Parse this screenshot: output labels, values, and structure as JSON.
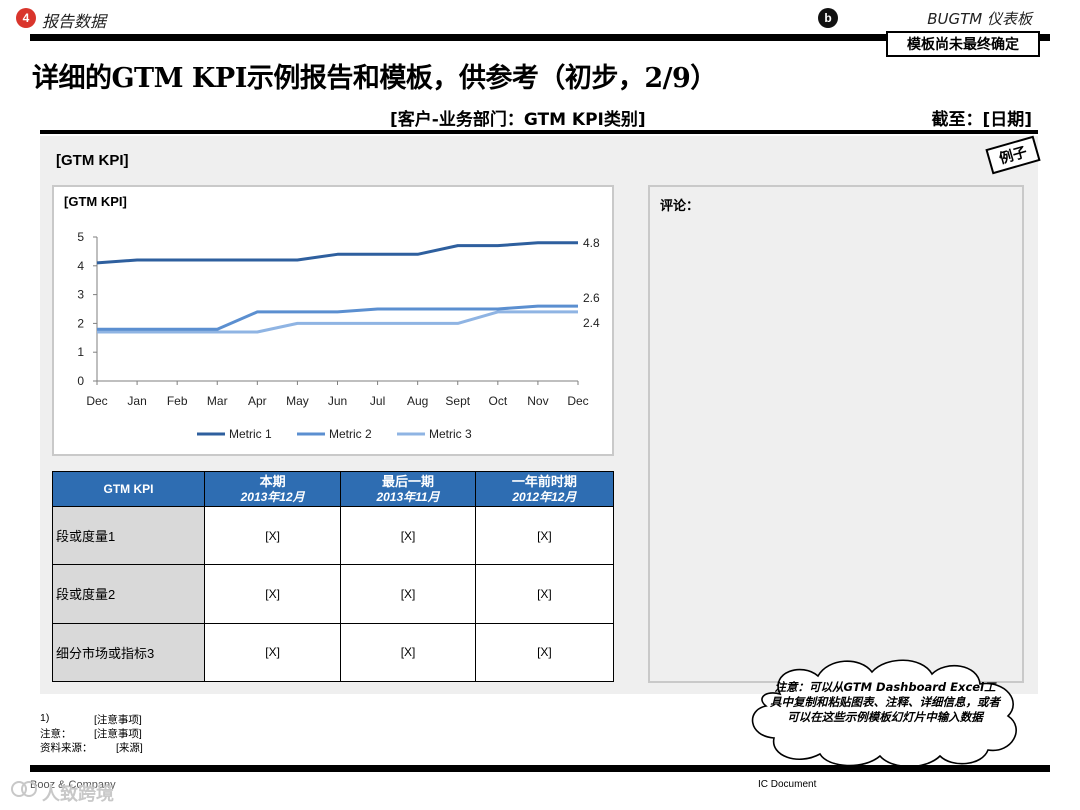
{
  "section": {
    "number": "4",
    "label": "报告数据"
  },
  "corner_badge": "b",
  "brand": "BUGTM 仪表板",
  "stamp": "模板尚未最终确定",
  "title": "详细的GTM KPI示例报告和模板，供参考（初步，2/9）",
  "subheader": "[客户-业务部门：GTM KPI类别]",
  "as_of": "截至：[日期]",
  "panel_title": "[GTM KPI]",
  "example_tag": "例子",
  "comments_label": "评论：",
  "chart_data": {
    "type": "line",
    "title": "[GTM KPI]",
    "xlabel": "",
    "ylabel": "",
    "categories": [
      "Dec",
      "Jan",
      "Feb",
      "Mar",
      "Apr",
      "May",
      "Jun",
      "Jul",
      "Aug",
      "Sept",
      "Oct",
      "Nov",
      "Dec"
    ],
    "ylim": [
      0,
      5
    ],
    "yticks": [
      0,
      1,
      2,
      3,
      4,
      5
    ],
    "grid": false,
    "legend_position": "bottom",
    "series": [
      {
        "name": "Metric 1",
        "color": "#2e5f9e",
        "values": [
          4.1,
          4.2,
          4.2,
          4.2,
          4.2,
          4.2,
          4.4,
          4.4,
          4.4,
          4.7,
          4.7,
          4.8,
          4.8
        ],
        "end_label": "4.8"
      },
      {
        "name": "Metric 2",
        "color": "#5b8fd0",
        "values": [
          1.8,
          1.8,
          1.8,
          1.8,
          2.4,
          2.4,
          2.4,
          2.5,
          2.5,
          2.5,
          2.5,
          2.6,
          2.6
        ],
        "end_label": "2.6"
      },
      {
        "name": "Metric 3",
        "color": "#8fb4e3",
        "values": [
          1.7,
          1.7,
          1.7,
          1.7,
          1.7,
          2.0,
          2.0,
          2.0,
          2.0,
          2.0,
          2.4,
          2.4,
          2.4
        ],
        "end_label": "2.4"
      }
    ]
  },
  "table": {
    "header": [
      {
        "label": "GTM KPI",
        "period": ""
      },
      {
        "label": "本期",
        "period": "2013年12月"
      },
      {
        "label": "最后一期",
        "period": "2013年11月"
      },
      {
        "label": "一年前时期",
        "period": "2012年12月"
      }
    ],
    "rows": [
      {
        "label": "段或度量1",
        "cells": [
          "[X]",
          "[X]",
          "[X]"
        ]
      },
      {
        "label": "段或度量2",
        "cells": [
          "[X]",
          "[X]",
          "[X]"
        ]
      },
      {
        "label": "细分市场或指标3",
        "cells": [
          "[X]",
          "[X]",
          "[X]"
        ]
      }
    ]
  },
  "cloud_note": "注意：可以从GTM Dashboard Excel工具中复制和粘贴图表、注释、详细信息，或者可以在这些示例模板幻灯片中输入数据",
  "footnotes": [
    {
      "key": "1)",
      "value": "[注意事项]"
    },
    {
      "key": "注意：",
      "value": "[注意事项]"
    },
    {
      "key": "资料来源：",
      "value": "[来源]"
    }
  ],
  "footer": {
    "left": "Booz & Company",
    "mid": "IC Document"
  },
  "watermark": "人致跨境"
}
